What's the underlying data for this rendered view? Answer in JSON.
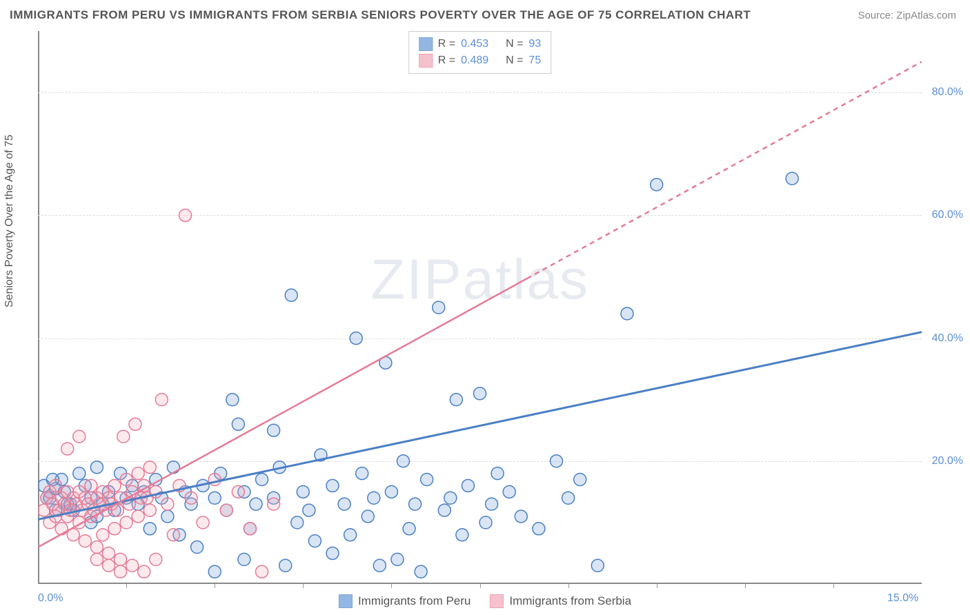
{
  "title": "IMMIGRANTS FROM PERU VS IMMIGRANTS FROM SERBIA SENIORS POVERTY OVER THE AGE OF 75 CORRELATION CHART",
  "source": "Source: ZipAtlas.com",
  "watermark": "ZIPatlas",
  "y_axis_label": "Seniors Poverty Over the Age of 75",
  "chart": {
    "type": "scatter",
    "xlim": [
      0,
      15
    ],
    "ylim": [
      0,
      90
    ],
    "x_ticks": [
      0,
      15
    ],
    "x_tick_labels": [
      "0.0%",
      "15.0%"
    ],
    "x_minor_ticks": [
      1.5,
      3.0,
      4.5,
      6.0,
      7.5,
      9.0,
      10.5,
      12.0,
      13.5
    ],
    "y_ticks": [
      20,
      40,
      60,
      80
    ],
    "y_tick_labels": [
      "20.0%",
      "40.0%",
      "60.0%",
      "80.0%"
    ],
    "grid_color": "#dddddd",
    "background_color": "#ffffff",
    "marker_radius": 9,
    "marker_stroke_width": 1.5,
    "marker_fill_opacity": 0.25
  },
  "series": [
    {
      "name": "Immigrants from Peru",
      "color": "#6699d8",
      "stroke": "#4a7fc4",
      "R": "0.453",
      "N": "93",
      "trend": {
        "x1": 0,
        "y1": 10.5,
        "x2": 15,
        "y2": 41,
        "solid_until_x": 15,
        "width": 3
      },
      "points": [
        [
          0.2,
          14
        ],
        [
          0.3,
          15.5
        ],
        [
          0.5,
          13
        ],
        [
          0.4,
          17
        ],
        [
          0.6,
          12
        ],
        [
          0.8,
          16
        ],
        [
          0.9,
          14
        ],
        [
          1.0,
          11
        ],
        [
          0.7,
          18
        ],
        [
          1.1,
          13
        ],
        [
          1.2,
          15
        ],
        [
          1.3,
          12
        ],
        [
          1.4,
          18
        ],
        [
          1.5,
          14
        ],
        [
          0.9,
          10
        ],
        [
          1.0,
          19
        ],
        [
          1.6,
          16
        ],
        [
          1.7,
          13
        ],
        [
          1.8,
          15
        ],
        [
          2.0,
          17
        ],
        [
          2.1,
          14
        ],
        [
          2.2,
          11
        ],
        [
          2.3,
          19
        ],
        [
          2.5,
          15
        ],
        [
          1.9,
          9
        ],
        [
          2.6,
          13
        ],
        [
          2.8,
          16
        ],
        [
          3.0,
          14
        ],
        [
          3.1,
          18
        ],
        [
          3.2,
          12
        ],
        [
          3.3,
          30
        ],
        [
          3.5,
          15
        ],
        [
          3.4,
          26
        ],
        [
          3.7,
          13
        ],
        [
          3.8,
          17
        ],
        [
          4.0,
          14
        ],
        [
          4.1,
          19
        ],
        [
          4.3,
          47
        ],
        [
          4.5,
          15
        ],
        [
          4.6,
          12
        ],
        [
          4.8,
          21
        ],
        [
          5.0,
          16
        ],
        [
          5.2,
          13
        ],
        [
          5.4,
          40
        ],
        [
          5.5,
          18
        ],
        [
          5.7,
          14
        ],
        [
          5.9,
          36
        ],
        [
          6.0,
          15
        ],
        [
          6.2,
          20
        ],
        [
          6.4,
          13
        ],
        [
          6.6,
          17
        ],
        [
          6.8,
          45
        ],
        [
          7.0,
          14
        ],
        [
          7.1,
          30
        ],
        [
          7.3,
          16
        ],
        [
          7.5,
          31
        ],
        [
          7.7,
          13
        ],
        [
          7.8,
          18
        ],
        [
          8.0,
          15
        ],
        [
          8.8,
          20
        ],
        [
          9.0,
          14
        ],
        [
          9.2,
          17
        ],
        [
          9.5,
          3
        ],
        [
          10.0,
          44
        ],
        [
          10.5,
          65
        ],
        [
          12.8,
          66
        ],
        [
          3.0,
          2
        ],
        [
          3.5,
          4
        ],
        [
          4.2,
          3
        ],
        [
          5.0,
          5
        ],
        [
          5.8,
          3
        ],
        [
          6.1,
          4
        ],
        [
          6.5,
          2
        ],
        [
          2.4,
          8
        ],
        [
          2.7,
          6
        ],
        [
          3.6,
          9
        ],
        [
          4.4,
          10
        ],
        [
          4.7,
          7
        ],
        [
          5.3,
          8
        ],
        [
          5.6,
          11
        ],
        [
          6.3,
          9
        ],
        [
          6.9,
          12
        ],
        [
          7.2,
          8
        ],
        [
          7.6,
          10
        ],
        [
          8.2,
          11
        ],
        [
          8.5,
          9
        ],
        [
          4.0,
          25
        ],
        [
          0.1,
          16
        ],
        [
          0.15,
          14
        ],
        [
          0.3,
          12
        ],
        [
          0.25,
          17
        ],
        [
          0.45,
          15
        ],
        [
          0.55,
          13
        ]
      ]
    },
    {
      "name": "Immigrants from Serbia",
      "color": "#f0a8b8",
      "stroke": "#e57a95",
      "R": "0.489",
      "N": "75",
      "trend": {
        "x1": 0,
        "y1": 6,
        "x2": 15,
        "y2": 85,
        "solid_until_x": 8.3,
        "width": 2.5
      },
      "points": [
        [
          0.1,
          12
        ],
        [
          0.15,
          14
        ],
        [
          0.2,
          10
        ],
        [
          0.2,
          15
        ],
        [
          0.25,
          13
        ],
        [
          0.3,
          11
        ],
        [
          0.3,
          16
        ],
        [
          0.35,
          12
        ],
        [
          0.4,
          14
        ],
        [
          0.4,
          9
        ],
        [
          0.45,
          13
        ],
        [
          0.5,
          11
        ],
        [
          0.5,
          15
        ],
        [
          0.55,
          12
        ],
        [
          0.6,
          14
        ],
        [
          0.6,
          8
        ],
        [
          0.65,
          13
        ],
        [
          0.7,
          10
        ],
        [
          0.7,
          15
        ],
        [
          0.75,
          12
        ],
        [
          0.8,
          14
        ],
        [
          0.8,
          7
        ],
        [
          0.85,
          13
        ],
        [
          0.9,
          11
        ],
        [
          0.9,
          16
        ],
        [
          0.95,
          12
        ],
        [
          1.0,
          14
        ],
        [
          1.0,
          6
        ],
        [
          1.05,
          13
        ],
        [
          1.1,
          8
        ],
        [
          1.1,
          15
        ],
        [
          1.15,
          12
        ],
        [
          1.2,
          14
        ],
        [
          1.2,
          5
        ],
        [
          1.25,
          13
        ],
        [
          1.3,
          9
        ],
        [
          1.3,
          16
        ],
        [
          1.35,
          12
        ],
        [
          1.4,
          14
        ],
        [
          1.4,
          4
        ],
        [
          1.45,
          24
        ],
        [
          1.5,
          10
        ],
        [
          1.5,
          17
        ],
        [
          1.55,
          13
        ],
        [
          1.6,
          15
        ],
        [
          1.6,
          3
        ],
        [
          1.65,
          26
        ],
        [
          1.7,
          11
        ],
        [
          1.7,
          18
        ],
        [
          1.75,
          14
        ],
        [
          1.8,
          16
        ],
        [
          1.8,
          2
        ],
        [
          1.85,
          14
        ],
        [
          1.9,
          12
        ],
        [
          1.9,
          19
        ],
        [
          2.0,
          15
        ],
        [
          2.0,
          4
        ],
        [
          2.1,
          30
        ],
        [
          2.2,
          13
        ],
        [
          2.3,
          8
        ],
        [
          2.4,
          16
        ],
        [
          2.5,
          60
        ],
        [
          2.6,
          14
        ],
        [
          2.8,
          10
        ],
        [
          3.0,
          17
        ],
        [
          3.2,
          12
        ],
        [
          3.4,
          15
        ],
        [
          3.6,
          9
        ],
        [
          3.8,
          2
        ],
        [
          4.0,
          13
        ],
        [
          0.5,
          22
        ],
        [
          0.7,
          24
        ],
        [
          1.0,
          4
        ],
        [
          1.2,
          3
        ],
        [
          1.4,
          2
        ]
      ]
    }
  ],
  "legend_labels": {
    "peru": "Immigrants from Peru",
    "serbia": "Immigrants from Serbia",
    "R_label": "R =",
    "N_label": "N ="
  }
}
